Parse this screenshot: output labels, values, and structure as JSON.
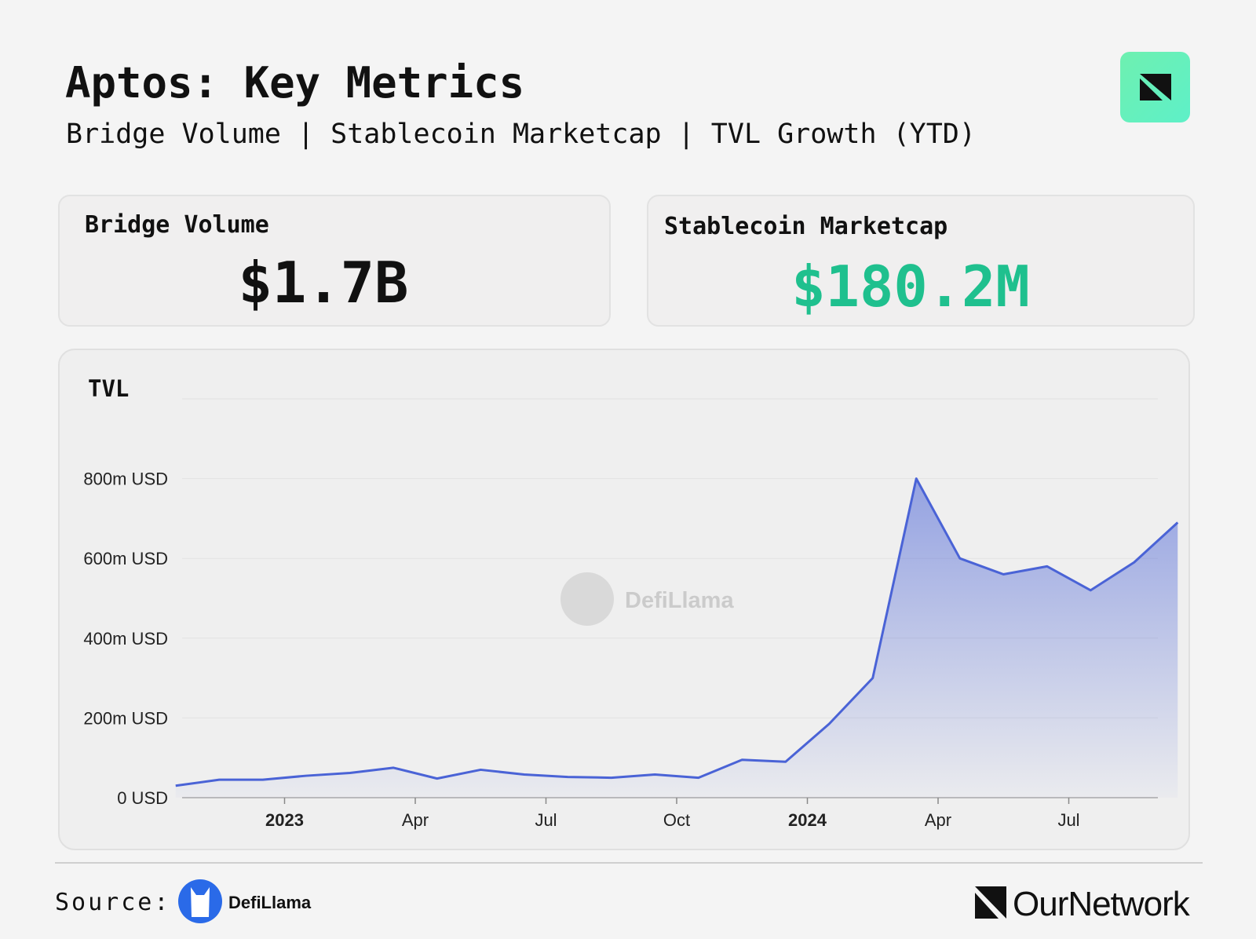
{
  "header": {
    "title": "Aptos: Key Metrics",
    "subtitle": "Bridge Volume | Stablecoin Marketcap | TVL Growth (YTD)"
  },
  "cards": [
    {
      "label": "Bridge Volume",
      "value": "$1.7B"
    },
    {
      "label": "Stablecoin Marketcap",
      "value": "$180.2M"
    }
  ],
  "chart_data": {
    "type": "line",
    "title": "TVL",
    "watermark": "DefiLlama",
    "x": [
      "2022-10",
      "2022-11",
      "2022-12",
      "2023-01",
      "2023-02",
      "2023-03",
      "2023-04",
      "2023-05",
      "2023-06",
      "2023-07",
      "2023-08",
      "2023-09",
      "2023-10",
      "2023-11",
      "2023-12",
      "2024-01",
      "2024-02",
      "2024-03",
      "2024-04",
      "2024-05",
      "2024-06",
      "2024-07",
      "2024-08",
      "2024-09"
    ],
    "series": [
      {
        "name": "TVL",
        "color": "#4a63d6",
        "values": [
          30000000,
          45000000,
          45000000,
          55000000,
          62000000,
          75000000,
          48000000,
          70000000,
          58000000,
          52000000,
          50000000,
          58000000,
          50000000,
          95000000,
          90000000,
          185000000,
          300000000,
          800000000,
          600000000,
          560000000,
          580000000,
          520000000,
          590000000,
          690000000
        ]
      }
    ],
    "xlim": [
      "2022-10",
      "2024-09"
    ],
    "xticks": [
      {
        "value": "2023-01",
        "label": "2023"
      },
      {
        "value": "2023-04",
        "label": "Apr"
      },
      {
        "value": "2023-07",
        "label": "Jul"
      },
      {
        "value": "2023-10",
        "label": "Oct"
      },
      {
        "value": "2024-01",
        "label": "2024"
      },
      {
        "value": "2024-04",
        "label": "Apr"
      },
      {
        "value": "2024-07",
        "label": "Jul"
      }
    ],
    "ylim": [
      0,
      1000000000
    ],
    "yticks": [
      {
        "value": 0,
        "label": "0 USD"
      },
      {
        "value": 200000000,
        "label": "200m USD"
      },
      {
        "value": 400000000,
        "label": "400m USD"
      },
      {
        "value": 600000000,
        "label": "600m USD"
      },
      {
        "value": 800000000,
        "label": "800m USD"
      }
    ],
    "grid": true
  },
  "footer": {
    "source_label": "Source:",
    "source_name": "DefiLlama",
    "brand": "OurNetwork"
  }
}
